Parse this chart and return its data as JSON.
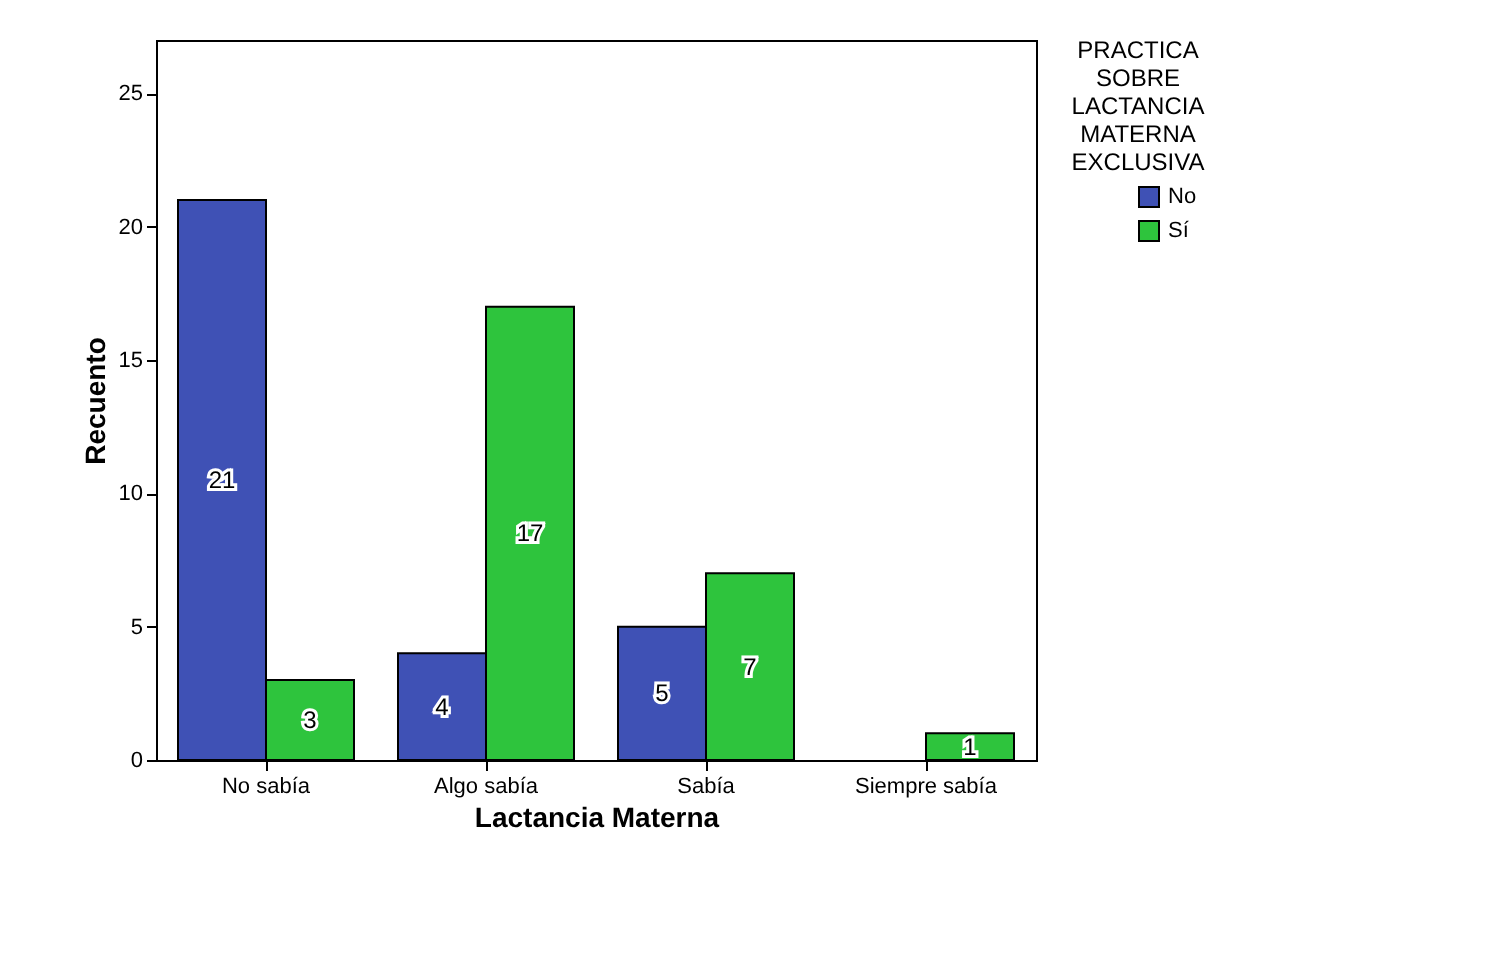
{
  "chart_data": {
    "type": "bar",
    "xlabel": "Lactancia Materna",
    "ylabel": "Recuento",
    "legend_title": "PRACTICA SOBRE LACTANCIA MATERNA EXCLUSIVA",
    "categories": [
      "No sabía",
      "Algo sabía",
      "Sabía",
      "Siempre sabía"
    ],
    "series": [
      {
        "name": "No",
        "color": "#3f51b5",
        "values": [
          21,
          4,
          5,
          null
        ],
        "value_labels": [
          "21",
          "4",
          "5",
          null
        ]
      },
      {
        "name": "Sí",
        "color": "#2ec43d",
        "values": [
          3,
          17,
          7,
          1
        ],
        "value_labels": [
          "3",
          "17",
          "7",
          "1"
        ]
      }
    ],
    "ylim": [
      0,
      27
    ],
    "yticks": [
      0,
      5,
      10,
      15,
      20,
      25
    ],
    "grid": false,
    "legend": "top right"
  }
}
